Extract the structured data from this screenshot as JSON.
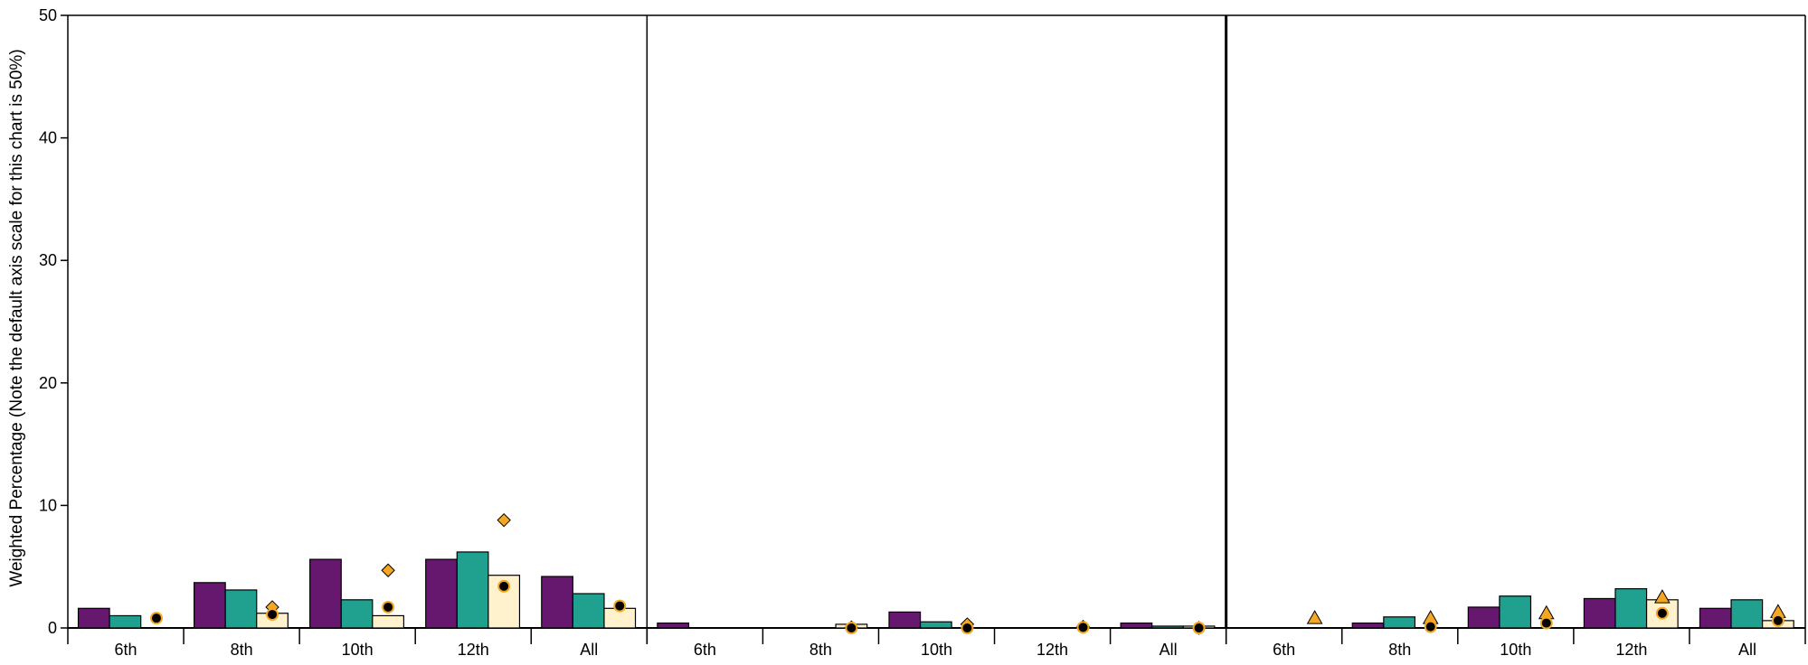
{
  "chart_data": {
    "type": "bar",
    "ylabel": "Weighted Percentage (Note the default axis scale for this chart is 50%)",
    "ylim": [
      0,
      50
    ],
    "yticks": [
      0,
      10,
      20,
      30,
      40,
      50
    ],
    "grid": false,
    "legend": "none",
    "colors": {
      "series1": "#66176e",
      "series2": "#20a08e",
      "series3": "#fff2cc",
      "diamond_marker": "#f5a623",
      "triangle_marker": "#f5a623",
      "circle_marker": "#000000",
      "circle_stroke": "#f5a623"
    },
    "panels": [
      {
        "categories": [
          "6th",
          "8th",
          "10th",
          "12th",
          "All"
        ],
        "series": [
          {
            "values": [
              1.6,
              3.7,
              5.6,
              5.6,
              4.2
            ]
          },
          {
            "values": [
              1.0,
              3.1,
              2.3,
              6.2,
              2.8
            ]
          },
          {
            "values": [
              0.0,
              1.2,
              1.0,
              4.3,
              1.6
            ]
          }
        ],
        "markers": [
          {
            "shape": "diamond",
            "values": [
              null,
              1.7,
              4.7,
              8.8,
              null
            ]
          },
          {
            "shape": "circle",
            "values": [
              0.8,
              1.1,
              1.7,
              3.4,
              1.8
            ]
          }
        ]
      },
      {
        "categories": [
          "6th",
          "8th",
          "10th",
          "12th",
          "All"
        ],
        "series": [
          {
            "values": [
              0.4,
              0.0,
              1.3,
              0.0,
              0.4
            ]
          },
          {
            "values": [
              0.0,
              0.0,
              0.5,
              0.0,
              0.15
            ]
          },
          {
            "values": [
              0.0,
              0.3,
              0.0,
              0.0,
              0.15
            ]
          }
        ],
        "markers": [
          {
            "shape": "diamond",
            "values": [
              null,
              0.05,
              0.3,
              0.1,
              0.0
            ]
          },
          {
            "shape": "circle",
            "values": [
              null,
              0.0,
              0.0,
              0.05,
              0.0
            ]
          }
        ]
      },
      {
        "categories": [
          "6th",
          "8th",
          "10th",
          "12th",
          "All"
        ],
        "series": [
          {
            "values": [
              0.0,
              0.4,
              1.7,
              2.4,
              1.6
            ]
          },
          {
            "values": [
              0.0,
              0.9,
              2.6,
              3.2,
              2.3
            ]
          },
          {
            "values": [
              0.0,
              0.0,
              0.0,
              2.3,
              0.6
            ]
          }
        ],
        "markers": [
          {
            "shape": "triangle",
            "values": [
              0.8,
              0.8,
              1.2,
              2.5,
              1.3
            ]
          },
          {
            "shape": "circle",
            "values": [
              null,
              0.1,
              0.4,
              1.2,
              0.6
            ]
          }
        ]
      }
    ]
  }
}
